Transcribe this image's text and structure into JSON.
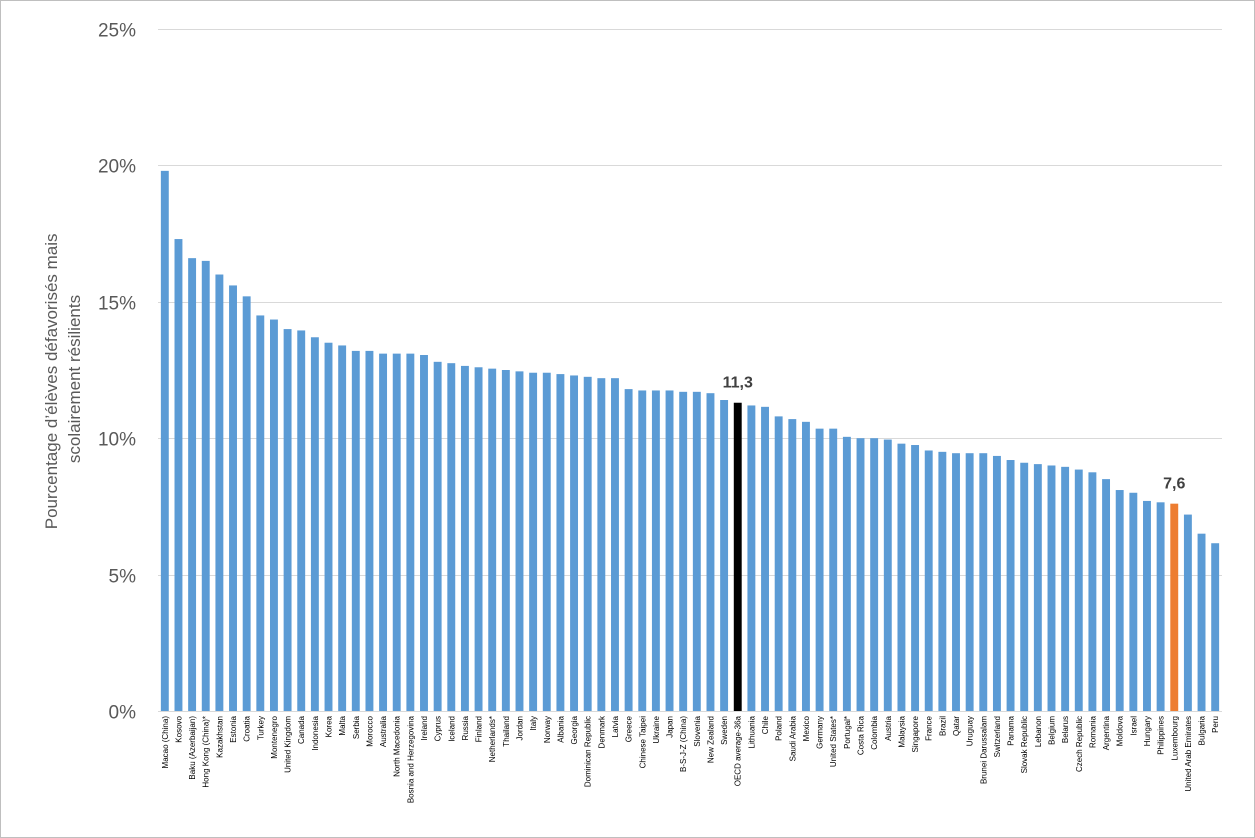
{
  "chart_data": {
    "type": "bar",
    "title": "",
    "xlabel": "",
    "ylabel_lines": [
      "Pourcentage d’élèves défavorisés mais",
      "scolairement résilients"
    ],
    "ylim": [
      0,
      25
    ],
    "yticks": [
      0,
      5,
      10,
      15,
      20,
      25
    ],
    "ytick_labels": [
      "0%",
      "5%",
      "10%",
      "15%",
      "20%",
      "25%"
    ],
    "grid": true,
    "legend": "none",
    "colors": {
      "default": "#5b9bd5",
      "oecd": "#000000",
      "luxembourg": "#ed7d31"
    },
    "categories": [
      "Macao (China)",
      "Kosovo",
      "Baku (Azerbaijan)",
      "Hong Kong (China)*",
      "Kazakhstan",
      "Estonia",
      "Croatia",
      "Turkey",
      "Montenegro",
      "United Kingdom",
      "Canada",
      "Indonesia",
      "Korea",
      "Malta",
      "Serbia",
      "Morocco",
      "Australia",
      "North Macedonia",
      "Bosnia and Herzegovina",
      "Ireland",
      "Cyprus",
      "Iceland",
      "Russia",
      "Finland",
      "Netherlands*",
      "Thailand",
      "Jordan",
      "Italy",
      "Norway",
      "Albania",
      "Georgia",
      "Dominican Republic",
      "Denmark",
      "Latvia",
      "Greece",
      "Chinese Taipei",
      "Ukraine",
      "Japan",
      "B-S-J-Z (China)",
      "Slovenia",
      "New Zealand",
      "Sweden",
      "OECD average-36a",
      "Lithuania",
      "Chile",
      "Poland",
      "Saudi Arabia",
      "Mexico",
      "Germany",
      "United States*",
      "Portugal*",
      "Costa Rica",
      "Colombia",
      "Austria",
      "Malaysia",
      "Singapore",
      "France",
      "Brazil",
      "Qatar",
      "Uruguay",
      "Brunei Darussalam",
      "Switzerland",
      "Panama",
      "Slovak Republic",
      "Lebanon",
      "Belgium",
      "Belarus",
      "Czech Republic",
      "Romania",
      "Argentina",
      "Moldova",
      "Israel",
      "Hungary",
      "Philippines",
      "Luxembourg",
      "United Arab Emirates",
      "Bulgaria",
      "Peru"
    ],
    "values": [
      19.8,
      17.3,
      16.6,
      16.5,
      16.0,
      15.6,
      15.2,
      14.5,
      14.35,
      14.0,
      13.95,
      13.7,
      13.5,
      13.4,
      13.2,
      13.2,
      13.1,
      13.1,
      13.1,
      13.05,
      12.8,
      12.75,
      12.65,
      12.6,
      12.55,
      12.5,
      12.45,
      12.4,
      12.4,
      12.35,
      12.3,
      12.25,
      12.2,
      12.2,
      11.8,
      11.75,
      11.75,
      11.75,
      11.7,
      11.7,
      11.65,
      11.4,
      11.3,
      11.2,
      11.15,
      10.8,
      10.7,
      10.6,
      10.35,
      10.35,
      10.05,
      10.0,
      10.0,
      9.95,
      9.8,
      9.75,
      9.55,
      9.5,
      9.45,
      9.45,
      9.45,
      9.35,
      9.2,
      9.1,
      9.05,
      9.0,
      8.95,
      8.85,
      8.75,
      8.5,
      8.1,
      8.0,
      7.7,
      7.65,
      7.6,
      7.2,
      6.5,
      6.15
    ],
    "highlights": [
      {
        "category": "OECD average-36a",
        "label": "11,3",
        "color": "#000000"
      },
      {
        "category": "Luxembourg",
        "label": "7,6",
        "color": "#ed7d31"
      }
    ]
  }
}
